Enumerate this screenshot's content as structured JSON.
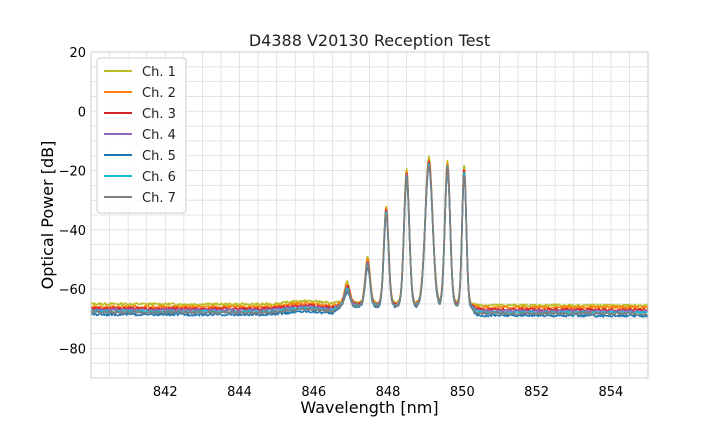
{
  "chart_data": {
    "type": "line",
    "title": "D4388 V20130 Reception Test",
    "xlabel": "Wavelength [nm]",
    "ylabel": "Optical Power [dB]",
    "xlim": [
      840,
      855
    ],
    "ylim": [
      -90,
      20
    ],
    "xticks": [
      842,
      844,
      846,
      848,
      850,
      852,
      854
    ],
    "yticks": [
      20,
      0,
      -20,
      -40,
      -60,
      -80
    ],
    "x_minor_step": 0.5,
    "y_minor_step": 5,
    "grid": true,
    "legend_position": "top-left",
    "series": [
      {
        "name": "Ch. 1",
        "color": "#bcbd22",
        "baseline_left": -65.0,
        "baseline_right": -65.6,
        "peak_offset": 2.0
      },
      {
        "name": "Ch. 2",
        "color": "#ff7f0e",
        "baseline_left": -66.0,
        "baseline_right": -66.2,
        "peak_offset": 1.0
      },
      {
        "name": "Ch. 3",
        "color": "#d62728",
        "baseline_left": -66.5,
        "baseline_right": -67.0,
        "peak_offset": 0.5
      },
      {
        "name": "Ch. 4",
        "color": "#9467bd",
        "baseline_left": -67.0,
        "baseline_right": -67.5,
        "peak_offset": 0.0
      },
      {
        "name": "Ch. 5",
        "color": "#1f77b4",
        "baseline_left": -68.5,
        "baseline_right": -69.0,
        "peak_offset": -1.5
      },
      {
        "name": "Ch. 6",
        "color": "#17becf",
        "baseline_left": -67.5,
        "baseline_right": -68.0,
        "peak_offset": -0.5
      },
      {
        "name": "Ch. 7",
        "color": "#7f7f7f",
        "baseline_left": -67.8,
        "baseline_right": -68.3,
        "peak_offset": -1.0
      }
    ],
    "peaks": [
      {
        "x": 846.9,
        "y": -59.5,
        "width": 0.1
      },
      {
        "x": 847.45,
        "y": -51.0,
        "width": 0.09
      },
      {
        "x": 847.95,
        "y": -33.5,
        "width": 0.09
      },
      {
        "x": 848.5,
        "y": -21.5,
        "width": 0.1
      },
      {
        "x": 849.1,
        "y": -17.5,
        "width": 0.14
      },
      {
        "x": 849.6,
        "y": -18.5,
        "width": 0.1
      },
      {
        "x": 850.05,
        "y": -20.0,
        "width": 0.08
      }
    ],
    "band": {
      "start": 846.6,
      "end": 850.3,
      "floor": -64.0
    }
  }
}
